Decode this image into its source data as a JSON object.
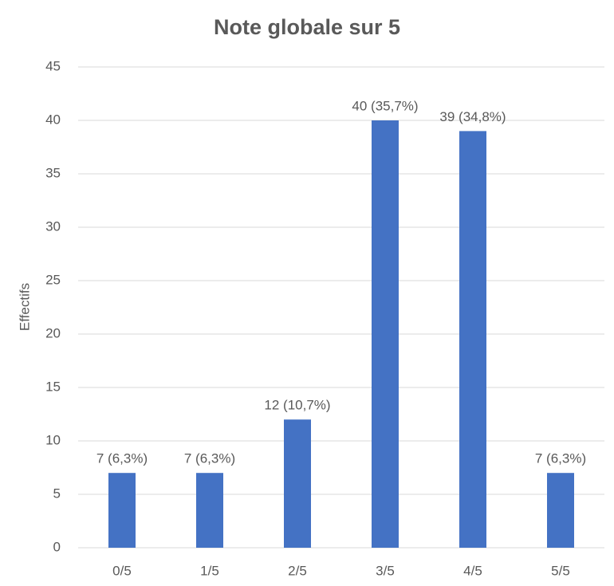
{
  "chart_data": {
    "type": "bar",
    "title": "Note globale sur 5",
    "y_label": "Effectifs",
    "categories": [
      "0/5",
      "1/5",
      "2/5",
      "3/5",
      "4/5",
      "5/5"
    ],
    "values": [
      7,
      7,
      12,
      40,
      39,
      7
    ],
    "value_labels": [
      "7 (6,3%)",
      "7 (6,3%)",
      "12 (10,7%)",
      "40 (35,7%)",
      "39 (34,8%)",
      "7 (6,3%)"
    ],
    "color": "#4472c4",
    "ylim": [
      0,
      45
    ],
    "yticks": [
      0,
      5,
      10,
      15,
      20,
      25,
      30,
      35,
      40,
      45
    ],
    "grid": true
  }
}
